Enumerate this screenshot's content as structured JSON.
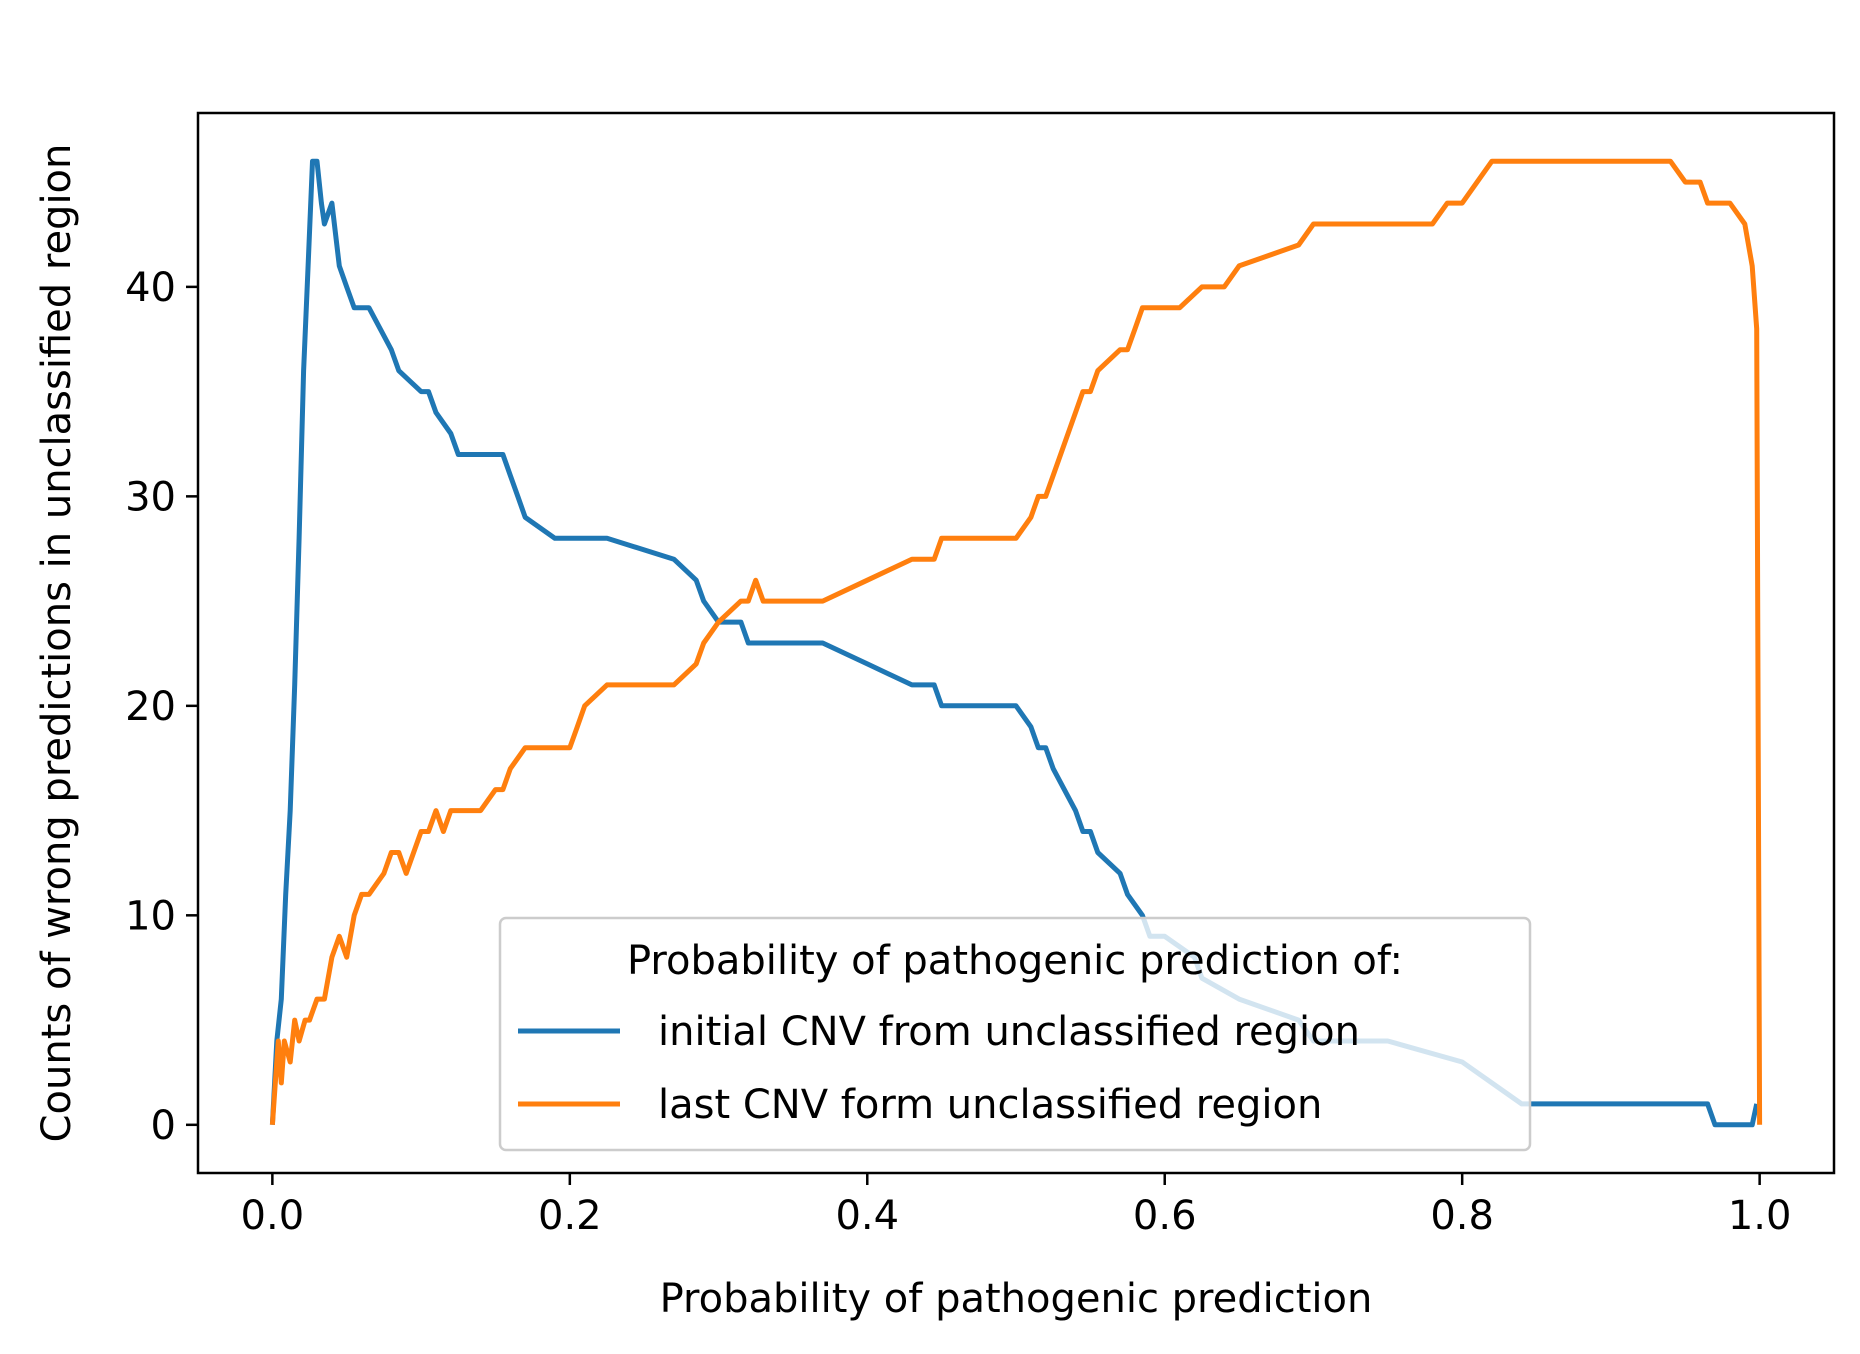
{
  "chart_data": {
    "type": "line",
    "title": "",
    "xlabel": "Probability of pathogenic prediction",
    "ylabel": "Counts of wrong predictions in unclassified region",
    "xlim": [
      -0.05,
      1.05
    ],
    "ylim": [
      -2.3,
      48.3
    ],
    "xticks": [
      0.0,
      0.2,
      0.4,
      0.6,
      0.8,
      1.0
    ],
    "xtick_labels": [
      "0.0",
      "0.2",
      "0.4",
      "0.6",
      "0.8",
      "1.0"
    ],
    "yticks": [
      0,
      10,
      20,
      30,
      40
    ],
    "ytick_labels": [
      "0",
      "10",
      "20",
      "30",
      "40"
    ],
    "grid": false,
    "legend": {
      "title": "Probability of pathogenic prediction of:",
      "position": "lower center"
    },
    "series": [
      {
        "name": "initial CNV from unclassified region",
        "color": "#1f77b4",
        "x": [
          0.0,
          0.003,
          0.006,
          0.009,
          0.012,
          0.015,
          0.018,
          0.021,
          0.024,
          0.027,
          0.03,
          0.033,
          0.035,
          0.04,
          0.045,
          0.05,
          0.055,
          0.06,
          0.065,
          0.08,
          0.085,
          0.1,
          0.105,
          0.11,
          0.12,
          0.125,
          0.15,
          0.155,
          0.16,
          0.165,
          0.17,
          0.19,
          0.2,
          0.205,
          0.21,
          0.225,
          0.27,
          0.285,
          0.29,
          0.3,
          0.315,
          0.32,
          0.325,
          0.37,
          0.4,
          0.43,
          0.445,
          0.45,
          0.5,
          0.51,
          0.515,
          0.52,
          0.525,
          0.54,
          0.545,
          0.55,
          0.555,
          0.57,
          0.575,
          0.585,
          0.59,
          0.6,
          0.6,
          0.62,
          0.625,
          0.65,
          0.69,
          0.7,
          0.75,
          0.8,
          0.82,
          0.84,
          0.9,
          0.96,
          0.965,
          0.97,
          0.975,
          0.995,
          0.998
        ],
        "y": [
          0,
          4,
          6,
          11,
          15,
          21,
          28,
          36,
          41,
          46,
          46,
          44,
          43,
          44,
          41,
          40,
          39,
          39,
          39,
          37,
          36,
          35,
          35,
          34,
          33,
          32,
          32,
          32,
          31,
          30,
          29,
          28,
          28,
          28,
          28,
          28,
          27,
          26,
          25,
          24,
          24,
          23,
          23,
          23,
          22,
          21,
          21,
          20,
          20,
          19,
          18,
          18,
          17,
          15,
          14,
          14,
          13,
          12,
          11,
          10,
          9,
          9,
          9,
          8,
          7,
          6,
          5,
          4,
          4,
          3,
          2,
          1,
          1,
          1,
          1,
          0,
          0,
          0,
          1
        ]
      },
      {
        "name": "last CNV form unclassified region",
        "color": "#ff7f0e",
        "x": [
          0.0,
          0.002,
          0.004,
          0.006,
          0.008,
          0.012,
          0.015,
          0.018,
          0.022,
          0.025,
          0.03,
          0.035,
          0.04,
          0.045,
          0.05,
          0.055,
          0.06,
          0.065,
          0.075,
          0.08,
          0.085,
          0.09,
          0.1,
          0.105,
          0.11,
          0.115,
          0.12,
          0.13,
          0.14,
          0.15,
          0.155,
          0.16,
          0.17,
          0.19,
          0.2,
          0.205,
          0.21,
          0.225,
          0.27,
          0.285,
          0.29,
          0.3,
          0.315,
          0.32,
          0.325,
          0.33,
          0.37,
          0.4,
          0.43,
          0.445,
          0.45,
          0.5,
          0.51,
          0.515,
          0.52,
          0.525,
          0.54,
          0.545,
          0.55,
          0.555,
          0.57,
          0.575,
          0.58,
          0.585,
          0.59,
          0.6,
          0.61,
          0.625,
          0.64,
          0.65,
          0.69,
          0.7,
          0.75,
          0.78,
          0.79,
          0.8,
          0.81,
          0.82,
          0.86,
          0.9,
          0.94,
          0.95,
          0.96,
          0.965,
          0.97,
          0.98,
          0.99,
          0.995,
          0.998,
          1.0
        ],
        "y": [
          0,
          2,
          4,
          2,
          4,
          3,
          5,
          4,
          5,
          5,
          6,
          6,
          8,
          9,
          8,
          10,
          11,
          11,
          12,
          13,
          13,
          12,
          14,
          14,
          15,
          14,
          15,
          15,
          15,
          16,
          16,
          17,
          18,
          18,
          18,
          19,
          20,
          21,
          21,
          22,
          23,
          24,
          25,
          25,
          26,
          25,
          25,
          26,
          27,
          27,
          28,
          28,
          29,
          30,
          30,
          31,
          34,
          35,
          35,
          36,
          37,
          37,
          38,
          39,
          39,
          39,
          39,
          40,
          40,
          41,
          42,
          43,
          43,
          43,
          44,
          44,
          45,
          46,
          46,
          46,
          46,
          45,
          45,
          44,
          44,
          44,
          43,
          41,
          38,
          0
        ]
      }
    ]
  }
}
